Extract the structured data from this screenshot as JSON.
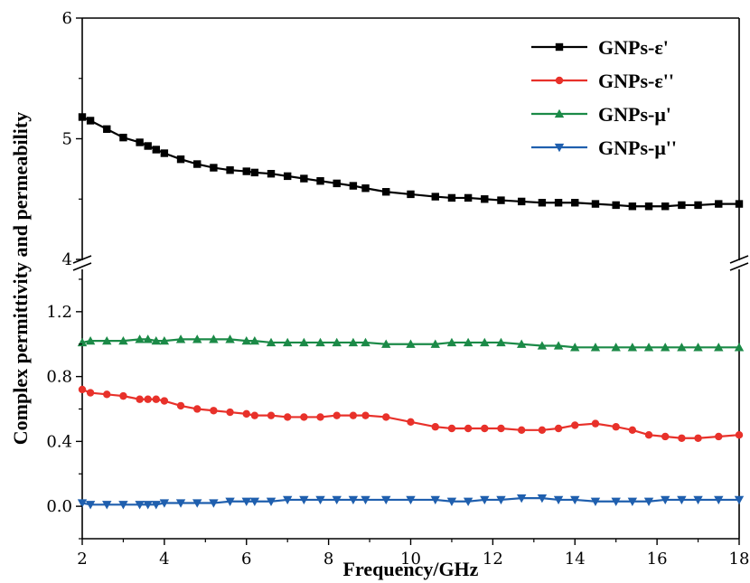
{
  "chart_data": {
    "type": "line",
    "title": "",
    "xlabel": "Frequency/GHz",
    "ylabel": "Complex permittivity and permeability",
    "xlim": [
      2,
      18
    ],
    "x_ticks": [
      2,
      4,
      6,
      8,
      10,
      12,
      14,
      16,
      18
    ],
    "x_tick_labels": [
      "2",
      "4",
      "6",
      "8",
      "10",
      "12",
      "14",
      "16",
      "18"
    ],
    "y_axis_break": true,
    "upper_ylim": [
      4,
      6
    ],
    "upper_y_ticks": [
      4,
      5,
      6
    ],
    "upper_y_tick_labels": [
      "4",
      "5",
      "6"
    ],
    "lower_ylim": [
      -0.2,
      1.45
    ],
    "lower_y_ticks": [
      0.0,
      0.4,
      0.8,
      1.2
    ],
    "lower_y_tick_labels": [
      "0.0",
      "0.4",
      "0.8",
      "1.2"
    ],
    "legend_position": "top-right",
    "x": [
      2.0,
      2.2,
      2.6,
      3.0,
      3.4,
      3.6,
      3.8,
      4.0,
      4.4,
      4.8,
      5.2,
      5.6,
      6.0,
      6.2,
      6.6,
      7.0,
      7.4,
      7.8,
      8.2,
      8.6,
      8.9,
      9.4,
      10.0,
      10.6,
      11.0,
      11.4,
      11.8,
      12.2,
      12.7,
      13.2,
      13.6,
      14.0,
      14.5,
      15.0,
      15.4,
      15.8,
      16.2,
      16.6,
      17.0,
      17.5,
      18.0
    ],
    "series": [
      {
        "name": "GNPs-ε'",
        "color": "#000000",
        "marker": "square",
        "panel": "upper",
        "values": [
          5.18,
          5.15,
          5.08,
          5.01,
          4.97,
          4.94,
          4.91,
          4.88,
          4.83,
          4.79,
          4.76,
          4.74,
          4.73,
          4.72,
          4.71,
          4.69,
          4.67,
          4.65,
          4.63,
          4.61,
          4.59,
          4.56,
          4.54,
          4.52,
          4.51,
          4.51,
          4.5,
          4.49,
          4.48,
          4.47,
          4.47,
          4.47,
          4.46,
          4.45,
          4.44,
          4.44,
          4.44,
          4.45,
          4.45,
          4.46,
          4.46
        ]
      },
      {
        "name": "GNPs-ε''",
        "color": "#e8312a",
        "marker": "circle",
        "panel": "lower",
        "values": [
          0.72,
          0.7,
          0.69,
          0.68,
          0.66,
          0.66,
          0.66,
          0.65,
          0.62,
          0.6,
          0.59,
          0.58,
          0.57,
          0.56,
          0.56,
          0.55,
          0.55,
          0.55,
          0.56,
          0.56,
          0.56,
          0.55,
          0.52,
          0.49,
          0.48,
          0.48,
          0.48,
          0.48,
          0.47,
          0.47,
          0.48,
          0.5,
          0.51,
          0.49,
          0.47,
          0.44,
          0.43,
          0.42,
          0.42,
          0.43,
          0.44
        ]
      },
      {
        "name": "GNPs-μ'",
        "color": "#1b8a47",
        "marker": "triangle-up",
        "panel": "lower",
        "values": [
          1.01,
          1.02,
          1.02,
          1.02,
          1.03,
          1.03,
          1.02,
          1.02,
          1.03,
          1.03,
          1.03,
          1.03,
          1.02,
          1.02,
          1.01,
          1.01,
          1.01,
          1.01,
          1.01,
          1.01,
          1.01,
          1.0,
          1.0,
          1.0,
          1.01,
          1.01,
          1.01,
          1.01,
          1.0,
          0.99,
          0.99,
          0.98,
          0.98,
          0.98,
          0.98,
          0.98,
          0.98,
          0.98,
          0.98,
          0.98,
          0.98
        ]
      },
      {
        "name": "GNPs-μ''",
        "color": "#1f5fae",
        "marker": "triangle-down",
        "panel": "lower",
        "values": [
          0.02,
          0.01,
          0.01,
          0.01,
          0.01,
          0.01,
          0.01,
          0.02,
          0.02,
          0.02,
          0.02,
          0.03,
          0.03,
          0.03,
          0.03,
          0.04,
          0.04,
          0.04,
          0.04,
          0.04,
          0.04,
          0.04,
          0.04,
          0.04,
          0.03,
          0.03,
          0.04,
          0.04,
          0.05,
          0.05,
          0.04,
          0.04,
          0.03,
          0.03,
          0.03,
          0.03,
          0.04,
          0.04,
          0.04,
          0.04,
          0.04
        ]
      }
    ]
  }
}
